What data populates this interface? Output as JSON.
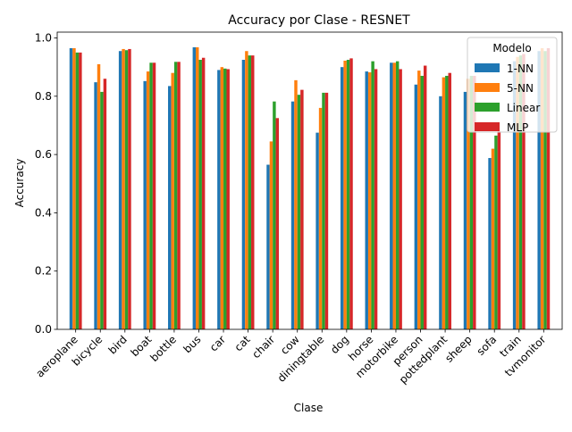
{
  "chart_data": {
    "type": "bar",
    "title": "Accuracy por Clase - RESNET",
    "xlabel": "Clase",
    "ylabel": "Accuracy",
    "ylim": [
      0,
      1.02
    ],
    "yticks": [
      "0.0",
      "0.2",
      "0.4",
      "0.6",
      "0.8",
      "1.0"
    ],
    "grid": false,
    "legend_title": "Modelo",
    "legend_position": "top-right",
    "categories": [
      "aeroplane",
      "bicycle",
      "bird",
      "boat",
      "bottle",
      "bus",
      "car",
      "cat",
      "chair",
      "cow",
      "diningtable",
      "dog",
      "horse",
      "motorbike",
      "person",
      "pottedplant",
      "sheep",
      "sofa",
      "train",
      "tvmonitor"
    ],
    "series": [
      {
        "name": "1-NN",
        "color": "#1f77b4",
        "values": [
          0.965,
          0.848,
          0.955,
          0.852,
          0.835,
          0.968,
          0.89,
          0.925,
          0.565,
          0.782,
          0.675,
          0.9,
          0.885,
          0.915,
          0.84,
          0.8,
          0.815,
          0.588,
          0.92,
          0.955
        ]
      },
      {
        "name": "5-NN",
        "color": "#ff7f0e",
        "values": [
          0.965,
          0.91,
          0.962,
          0.885,
          0.88,
          0.968,
          0.9,
          0.955,
          0.645,
          0.855,
          0.76,
          0.922,
          0.882,
          0.915,
          0.888,
          0.865,
          0.86,
          0.62,
          0.935,
          0.965
        ]
      },
      {
        "name": "Linear",
        "color": "#2ca02c",
        "values": [
          0.95,
          0.815,
          0.958,
          0.915,
          0.918,
          0.925,
          0.895,
          0.94,
          0.782,
          0.805,
          0.812,
          0.925,
          0.92,
          0.92,
          0.87,
          0.87,
          0.87,
          0.665,
          0.94,
          0.955
        ]
      },
      {
        "name": "MLP",
        "color": "#d62728",
        "values": [
          0.95,
          0.86,
          0.962,
          0.915,
          0.918,
          0.932,
          0.893,
          0.94,
          0.725,
          0.822,
          0.812,
          0.93,
          0.893,
          0.893,
          0.905,
          0.88,
          0.87,
          0.68,
          0.945,
          0.965
        ]
      }
    ]
  }
}
